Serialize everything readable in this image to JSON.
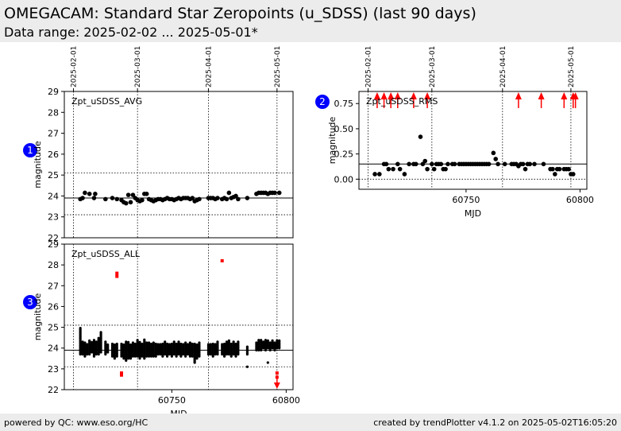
{
  "header": {
    "title": "OMEGACAM: Standard Star Zeropoints (u_SDSS) (last 90 days)",
    "subtitle": "Data range: 2025-02-02 ... 2025-05-01*"
  },
  "footer": {
    "left": "powered by QC: www.eso.org/HC",
    "right": "created by trendPlotter v4.1.2 on 2025-05-02T16:05:20"
  },
  "colors": {
    "points": "#000000",
    "outliers": "#ff0000",
    "badge": "#0000ff"
  },
  "date_ticks": [
    {
      "label": "2025-02-01",
      "mjd": 60707
    },
    {
      "label": "2025-03-01",
      "mjd": 60735
    },
    {
      "label": "2025-04-01",
      "mjd": 60766
    },
    {
      "label": "2025-05-01",
      "mjd": 60796
    }
  ],
  "chart_data": [
    {
      "id": 1,
      "badge": "1",
      "type": "scatter",
      "label": "Zpt_uSDSS_AVG",
      "ylabel": "magnitude",
      "xlim": [
        60703,
        60803
      ],
      "ylim": [
        22,
        29
      ],
      "yticks": [
        22,
        23,
        24,
        25,
        26,
        27,
        28,
        29
      ],
      "reference_line": 23.9,
      "band_lines": [
        23.1,
        25.1
      ],
      "points": [
        [
          60710,
          23.85
        ],
        [
          60711,
          23.9
        ],
        [
          60712,
          24.15
        ],
        [
          60714,
          24.1
        ],
        [
          60716,
          23.9
        ],
        [
          60716.5,
          24.1
        ],
        [
          60721,
          23.85
        ],
        [
          60724,
          23.9
        ],
        [
          60726,
          23.85
        ],
        [
          60728,
          23.8
        ],
        [
          60729,
          23.7
        ],
        [
          60730,
          23.65
        ],
        [
          60731,
          24.05
        ],
        [
          60732,
          23.7
        ],
        [
          60733,
          24.05
        ],
        [
          60734,
          23.9
        ],
        [
          60735,
          23.8
        ],
        [
          60736,
          23.75
        ],
        [
          60737,
          23.8
        ],
        [
          60738,
          24.1
        ],
        [
          60739,
          24.1
        ],
        [
          60740,
          23.85
        ],
        [
          60741,
          23.8
        ],
        [
          60742,
          23.75
        ],
        [
          60743,
          23.8
        ],
        [
          60744,
          23.85
        ],
        [
          60745,
          23.85
        ],
        [
          60746,
          23.8
        ],
        [
          60747,
          23.85
        ],
        [
          60748,
          23.9
        ],
        [
          60749,
          23.85
        ],
        [
          60750,
          23.85
        ],
        [
          60751,
          23.8
        ],
        [
          60752,
          23.85
        ],
        [
          60753,
          23.9
        ],
        [
          60754,
          23.85
        ],
        [
          60755,
          23.9
        ],
        [
          60756,
          23.9
        ],
        [
          60757,
          23.9
        ],
        [
          60758,
          23.85
        ],
        [
          60759,
          23.9
        ],
        [
          60760,
          23.75
        ],
        [
          60761,
          23.8
        ],
        [
          60762,
          23.85
        ],
        [
          60766,
          23.9
        ],
        [
          60767,
          23.9
        ],
        [
          60768,
          23.9
        ],
        [
          60769,
          23.85
        ],
        [
          60770,
          23.9
        ],
        [
          60772,
          23.85
        ],
        [
          60773,
          23.9
        ],
        [
          60774,
          23.85
        ],
        [
          60775,
          24.15
        ],
        [
          60776,
          23.9
        ],
        [
          60777,
          23.95
        ],
        [
          60778,
          24.0
        ],
        [
          60779,
          23.85
        ],
        [
          60783,
          23.9
        ],
        [
          60787,
          24.1
        ],
        [
          60788,
          24.15
        ],
        [
          60789,
          24.15
        ],
        [
          60790,
          24.15
        ],
        [
          60791,
          24.15
        ],
        [
          60792,
          24.1
        ],
        [
          60793,
          24.15
        ],
        [
          60794,
          24.15
        ],
        [
          60795,
          24.15
        ],
        [
          60797,
          24.15
        ]
      ],
      "outliers": []
    },
    {
      "id": 2,
      "badge": "2",
      "type": "scatter",
      "label": "Zpt_uSDSS_RMS",
      "ylabel": "magnitude",
      "xlabel": "MJD",
      "xlim": [
        60703,
        60803
      ],
      "ylim": [
        -0.1,
        0.87
      ],
      "yticks": [
        0.0,
        0.25,
        0.5,
        0.75
      ],
      "ytick_labels": [
        "0.00",
        "0.25",
        "0.50",
        "0.75"
      ],
      "xticks": [
        60750,
        60800
      ],
      "reference_line": 0.15,
      "band_lines": [
        0.0
      ],
      "points": [
        [
          60710,
          0.05
        ],
        [
          60712,
          0.05
        ],
        [
          60714,
          0.15
        ],
        [
          60715,
          0.15
        ],
        [
          60716,
          0.1
        ],
        [
          60718,
          0.1
        ],
        [
          60720,
          0.15
        ],
        [
          60721,
          0.1
        ],
        [
          60723,
          0.05
        ],
        [
          60725,
          0.15
        ],
        [
          60727,
          0.15
        ],
        [
          60728,
          0.15
        ],
        [
          60730,
          0.42
        ],
        [
          60731,
          0.15
        ],
        [
          60732,
          0.18
        ],
        [
          60733,
          0.1
        ],
        [
          60735,
          0.15
        ],
        [
          60736,
          0.1
        ],
        [
          60737,
          0.15
        ],
        [
          60738,
          0.15
        ],
        [
          60739,
          0.15
        ],
        [
          60740,
          0.1
        ],
        [
          60741,
          0.1
        ],
        [
          60742,
          0.15
        ],
        [
          60744,
          0.15
        ],
        [
          60745,
          0.15
        ],
        [
          60747,
          0.15
        ],
        [
          60748,
          0.15
        ],
        [
          60749,
          0.15
        ],
        [
          60750,
          0.15
        ],
        [
          60751,
          0.15
        ],
        [
          60752,
          0.15
        ],
        [
          60753,
          0.15
        ],
        [
          60754,
          0.15
        ],
        [
          60755,
          0.15
        ],
        [
          60756,
          0.15
        ],
        [
          60757,
          0.15
        ],
        [
          60758,
          0.15
        ],
        [
          60759,
          0.15
        ],
        [
          60760,
          0.15
        ],
        [
          60762,
          0.26
        ],
        [
          60763,
          0.2
        ],
        [
          60764,
          0.15
        ],
        [
          60767,
          0.15
        ],
        [
          60770,
          0.15
        ],
        [
          60771,
          0.15
        ],
        [
          60772,
          0.15
        ],
        [
          60773,
          0.13
        ],
        [
          60774,
          0.15
        ],
        [
          60775,
          0.15
        ],
        [
          60776,
          0.1
        ],
        [
          60777,
          0.15
        ],
        [
          60778,
          0.15
        ],
        [
          60780,
          0.15
        ],
        [
          60784,
          0.15
        ],
        [
          60787,
          0.1
        ],
        [
          60788,
          0.1
        ],
        [
          60789,
          0.05
        ],
        [
          60790,
          0.1
        ],
        [
          60791,
          0.1
        ],
        [
          60793,
          0.1
        ],
        [
          60794,
          0.1
        ],
        [
          60795,
          0.1
        ],
        [
          60796,
          0.05
        ],
        [
          60797,
          0.05
        ]
      ],
      "outliers": [],
      "upper_arrows": [
        60711,
        60714,
        60717,
        60720,
        60727,
        60733,
        60773,
        60783,
        60793,
        60797,
        60798
      ]
    },
    {
      "id": 3,
      "badge": "3",
      "type": "scatter",
      "label": "Zpt_uSDSS_ALL",
      "ylabel": "magnitude",
      "xlabel": "MJD",
      "xlim": [
        60703,
        60803
      ],
      "ylim": [
        22,
        29
      ],
      "yticks": [
        22,
        23,
        24,
        25,
        26,
        27,
        28,
        29
      ],
      "xticks": [
        60750,
        60800
      ],
      "reference_line": 23.9,
      "band_lines": [
        23.1,
        25.1
      ],
      "point_columns": [
        [
          60710,
          23.7,
          25.0
        ],
        [
          60711,
          23.7,
          24.3
        ],
        [
          60712,
          23.6,
          24.3
        ],
        [
          60713,
          23.7,
          24.2
        ],
        [
          60714,
          23.7,
          24.4
        ],
        [
          60715,
          23.8,
          24.3
        ],
        [
          60716,
          23.6,
          24.4
        ],
        [
          60717,
          23.7,
          24.3
        ],
        [
          60718,
          23.7,
          24.5
        ],
        [
          60719,
          23.8,
          24.8
        ],
        [
          60721,
          23.7,
          24.3
        ],
        [
          60722,
          23.8,
          24.2
        ],
        [
          60724,
          23.6,
          24.2
        ],
        [
          60725,
          23.5,
          24.2
        ],
        [
          60726,
          23.6,
          24.2
        ],
        [
          60728,
          23.6,
          24.2
        ],
        [
          60729,
          23.5,
          24.2
        ],
        [
          60730,
          23.4,
          24.3
        ],
        [
          60731,
          23.5,
          24.3
        ],
        [
          60732,
          23.5,
          24.2
        ],
        [
          60733,
          23.6,
          24.3
        ],
        [
          60734,
          23.6,
          24.2
        ],
        [
          60735,
          23.6,
          24.4
        ],
        [
          60736,
          23.5,
          24.3
        ],
        [
          60737,
          23.6,
          24.2
        ],
        [
          60738,
          23.5,
          24.4
        ],
        [
          60739,
          23.6,
          24.3
        ],
        [
          60740,
          23.6,
          24.3
        ],
        [
          60741,
          23.6,
          24.2
        ],
        [
          60742,
          23.6,
          24.3
        ],
        [
          60743,
          23.6,
          24.2
        ],
        [
          60744,
          23.7,
          24.2
        ],
        [
          60745,
          23.7,
          24.2
        ],
        [
          60746,
          23.6,
          24.2
        ],
        [
          60747,
          23.7,
          24.3
        ],
        [
          60748,
          23.6,
          24.2
        ],
        [
          60749,
          23.7,
          24.2
        ],
        [
          60750,
          23.6,
          24.2
        ],
        [
          60751,
          23.7,
          24.3
        ],
        [
          60752,
          23.6,
          24.2
        ],
        [
          60753,
          23.7,
          24.3
        ],
        [
          60754,
          23.6,
          24.2
        ],
        [
          60755,
          23.7,
          24.2
        ],
        [
          60756,
          23.6,
          24.3
        ],
        [
          60757,
          23.7,
          24.2
        ],
        [
          60758,
          23.6,
          24.3
        ],
        [
          60759,
          23.6,
          24.2
        ],
        [
          60760,
          23.3,
          24.2
        ],
        [
          60761,
          23.5,
          24.2
        ],
        [
          60762,
          23.6,
          24.3
        ],
        [
          60766,
          23.7,
          24.2
        ],
        [
          60767,
          23.7,
          24.2
        ],
        [
          60768,
          23.6,
          24.2
        ],
        [
          60769,
          23.7,
          24.2
        ],
        [
          60770,
          23.7,
          24.3
        ],
        [
          60772,
          23.7,
          24.2
        ],
        [
          60773,
          23.6,
          24.2
        ],
        [
          60774,
          23.7,
          24.3
        ],
        [
          60775,
          23.7,
          24.4
        ],
        [
          60776,
          23.6,
          24.2
        ],
        [
          60777,
          23.7,
          24.3
        ],
        [
          60778,
          23.6,
          24.2
        ],
        [
          60779,
          23.7,
          24.3
        ],
        [
          60783,
          23.7,
          24.1
        ],
        [
          60787,
          23.9,
          24.3
        ],
        [
          60788,
          23.9,
          24.4
        ],
        [
          60789,
          23.9,
          24.4
        ],
        [
          60790,
          24.0,
          24.3
        ],
        [
          60791,
          23.9,
          24.4
        ],
        [
          60792,
          24.0,
          24.4
        ],
        [
          60793,
          23.9,
          24.3
        ],
        [
          60794,
          24.0,
          24.4
        ],
        [
          60795,
          23.9,
          24.3
        ],
        [
          60796,
          24.0,
          24.4
        ],
        [
          60797,
          24.0,
          24.4
        ]
      ],
      "points": [
        [
          60783,
          23.1
        ],
        [
          60792,
          23.3
        ]
      ],
      "outliers": [
        [
          60726,
          27.6
        ],
        [
          60726,
          27.45
        ],
        [
          60728,
          22.8
        ],
        [
          60728,
          22.7
        ],
        [
          60772,
          28.2
        ],
        [
          60796,
          22.8
        ],
        [
          60796,
          22.6
        ]
      ],
      "lower_arrows": [
        60796
      ]
    }
  ]
}
